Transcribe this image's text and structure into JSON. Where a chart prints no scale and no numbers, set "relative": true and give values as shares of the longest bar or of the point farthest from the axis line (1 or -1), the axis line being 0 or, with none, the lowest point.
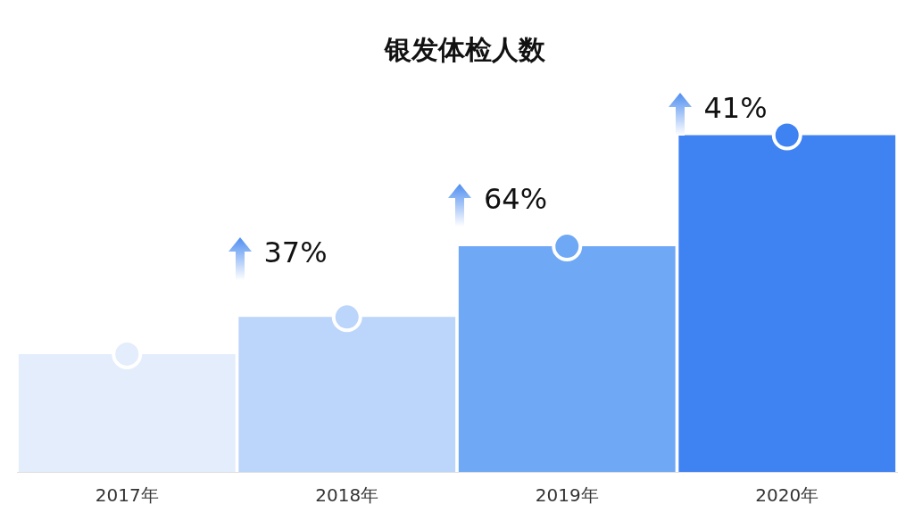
{
  "chart_data": {
    "type": "bar",
    "title": "银发体检人数",
    "categories": [
      "2017年",
      "2018年",
      "2019年",
      "2020年"
    ],
    "relative": true,
    "legend": false,
    "grid": false,
    "series": [
      {
        "type": "bar",
        "colors": [
          "#e3edfb",
          "#bcd5fa",
          "#6fa8f5",
          "#3f82f2"
        ],
        "values": [
          0.35,
          0.46,
          0.67,
          1
        ]
      },
      {
        "type": "scatter",
        "x": [
          "2017年",
          "2018年",
          "2019年",
          "2020年"
        ],
        "colors": [
          "#e3edfb",
          "#bcd5fa",
          "#6fa8f5",
          "#3f82f2"
        ],
        "marker": "circle",
        "values": [
          0.35,
          0.46,
          0.67,
          1
        ]
      }
    ],
    "annotations": [
      "37%",
      "64%",
      "41%"
    ]
  }
}
